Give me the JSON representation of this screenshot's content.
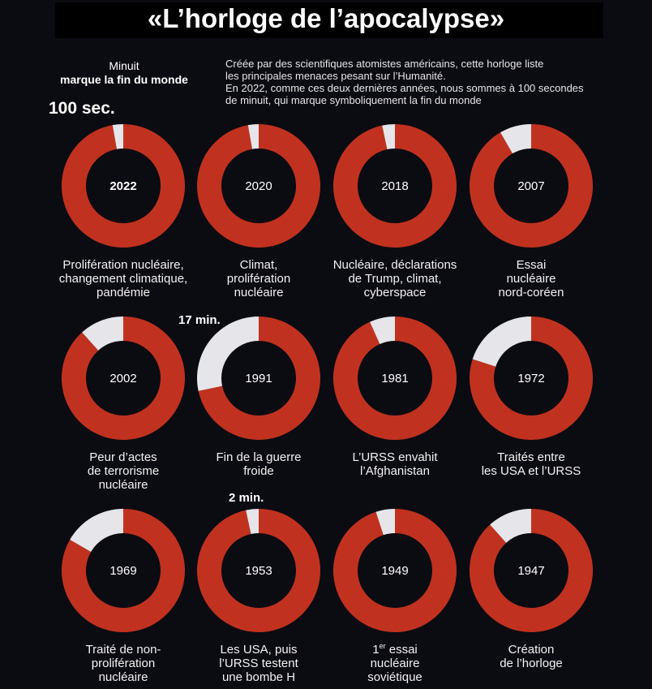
{
  "header": {
    "title": "«L’horloge de l’apocalypse»",
    "minuit_line1": "Minuit",
    "minuit_line2": "marque la fin du monde",
    "intro_lines": [
      "Créée par des scientifiques atomistes américains, cette horloge liste",
      "les principales menaces pesant sur l’Humanité.",
      "En 2022, comme ces deux dernières années, nous sommes à 100 secondes",
      "de minuit, qui marque symboliquement la fin du monde"
    ]
  },
  "callouts": {
    "c2022": "100 sec.",
    "c1991": "17 min.",
    "c1953": "2 min."
  },
  "colors": {
    "ring": "#c0321f",
    "gap": "#e6e6ea",
    "background": "#0b0b12"
  },
  "chart_data": {
    "type": "pie",
    "unit": "minutes before midnight",
    "clocks": [
      {
        "year": "2022",
        "minutes": 1.67,
        "caption": [
          "Prolifération nucléaire,",
          "changement climatique,",
          "pandémie"
        ]
      },
      {
        "year": "2020",
        "minutes": 1.67,
        "caption": [
          "Climat,",
          "prolifération",
          "nucléaire"
        ]
      },
      {
        "year": "2018",
        "minutes": 2,
        "caption": [
          "Nucléaire, déclarations",
          "de Trump, climat,",
          "cyberspace"
        ]
      },
      {
        "year": "2007",
        "minutes": 5,
        "caption": [
          "Essai",
          "nucléaire",
          "nord-coréen"
        ]
      },
      {
        "year": "2002",
        "minutes": 7,
        "caption": [
          "Peur d’actes",
          "de terrorisme",
          "nucléaire"
        ]
      },
      {
        "year": "1991",
        "minutes": 17,
        "caption": [
          "Fin de la guerre",
          "froide"
        ]
      },
      {
        "year": "1981",
        "minutes": 4,
        "caption": [
          "L’URSS envahit",
          "l’Afghanistan"
        ]
      },
      {
        "year": "1972",
        "minutes": 12,
        "caption": [
          "Traités entre",
          "les USA et l’URSS"
        ]
      },
      {
        "year": "1969",
        "minutes": 10,
        "caption": [
          "Traité de non-",
          "prolifération",
          "nucléaire"
        ]
      },
      {
        "year": "1953",
        "minutes": 2,
        "caption": [
          "Les USA, puis",
          "l’URSS testent",
          "une bombe H"
        ]
      },
      {
        "year": "1949",
        "minutes": 3,
        "caption": [
          "1er essai",
          "nucléaire",
          "soviétique"
        ]
      },
      {
        "year": "1947",
        "minutes": 7,
        "caption": [
          "Création",
          "de l’horloge"
        ]
      }
    ]
  }
}
